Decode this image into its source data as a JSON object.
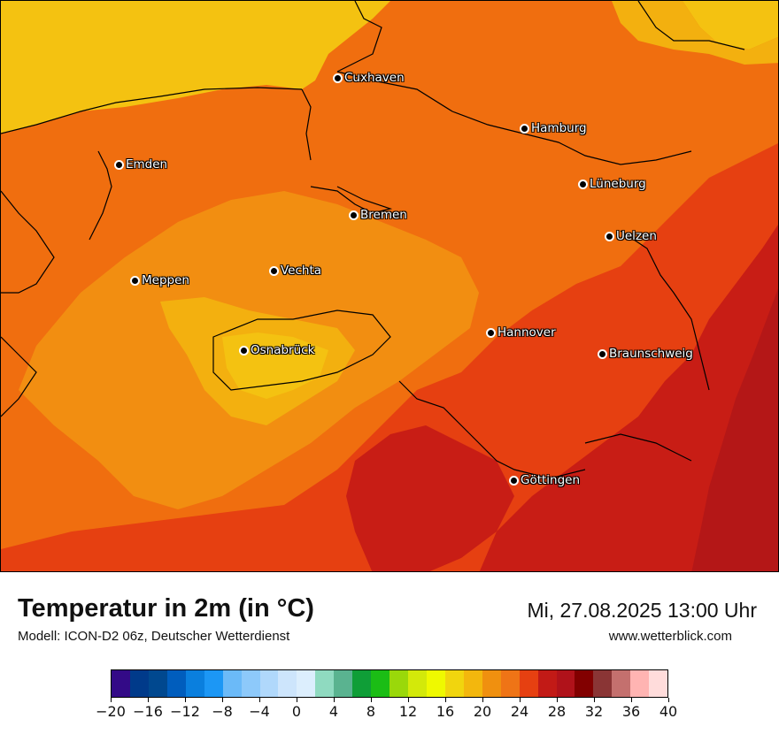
{
  "header": {
    "title": "Temperatur in 2m (in °C)",
    "model": "Modell: ICON-D2 06z, Deutscher Wetterdienst",
    "datetime": "Mi, 27.08.2025 13:00 Uhr",
    "website": "www.wetterblick.com"
  },
  "map": {
    "cities": [
      {
        "id": "cuxhaven",
        "name": "Cuxhaven"
      },
      {
        "id": "hamburg",
        "name": "Hamburg"
      },
      {
        "id": "emden",
        "name": "Emden"
      },
      {
        "id": "lueneburg",
        "name": "Lüneburg"
      },
      {
        "id": "bremen",
        "name": "Bremen"
      },
      {
        "id": "uelzen",
        "name": "Uelzen"
      },
      {
        "id": "vechta",
        "name": "Vechta"
      },
      {
        "id": "meppen",
        "name": "Meppen"
      },
      {
        "id": "hannover",
        "name": "Hannover"
      },
      {
        "id": "osnabrueck",
        "name": "Osnabrück"
      },
      {
        "id": "braunschweig",
        "name": "Braunschweig"
      },
      {
        "id": "goettingen",
        "name": "Göttingen"
      }
    ],
    "temperature_band_colors": {
      "16-18": "#f4c211",
      "18-20": "#f3b00f",
      "20-22": "#f28e11",
      "22-24": "#f06e0f",
      "24-26": "#e64011",
      "26-28": "#c81d15",
      "28-30": "#b41717"
    }
  },
  "legend": {
    "colors": [
      "#330a87",
      "#003a8a",
      "#00488f",
      "#005dbd",
      "#0a7fde",
      "#1c97f5",
      "#6bbaf8",
      "#8dc9fa",
      "#b0d8fb",
      "#cde5fc",
      "#dceefd",
      "#8fdac0",
      "#5ab390",
      "#0f9e37",
      "#1bbd15",
      "#9ad80a",
      "#d3e90a",
      "#eff900",
      "#f1d50e",
      "#f3b70d",
      "#f0900f",
      "#ef7416",
      "#e64011",
      "#c21a16",
      "#b0121a",
      "#820000",
      "#8a3535",
      "#c4706e",
      "#ffb4b2",
      "#ffdcdb"
    ],
    "ticks": [
      "−20",
      "−16",
      "−12",
      "−8",
      "−4",
      "0",
      "4",
      "8",
      "12",
      "16",
      "20",
      "24",
      "28",
      "32",
      "36",
      "40"
    ]
  }
}
